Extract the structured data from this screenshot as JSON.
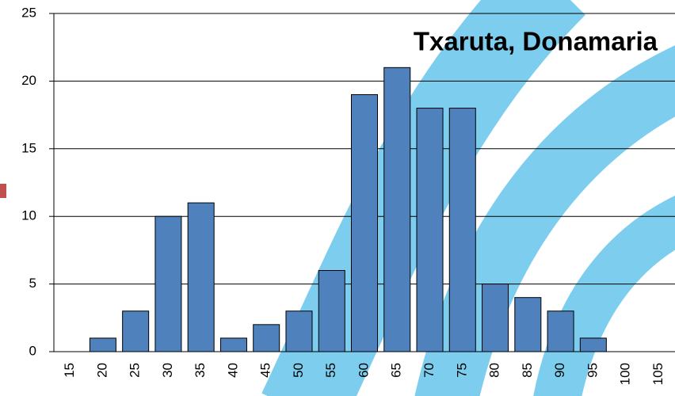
{
  "chart_data": {
    "type": "bar",
    "title": "Txaruta, Donamaria",
    "categories": [
      "15",
      "20",
      "25",
      "30",
      "35",
      "40",
      "45",
      "50",
      "55",
      "60",
      "65",
      "70",
      "75",
      "80",
      "85",
      "90",
      "95",
      "100",
      "105"
    ],
    "values": [
      0,
      1,
      3,
      10,
      11,
      1,
      2,
      3,
      6,
      19,
      21,
      18,
      18,
      5,
      4,
      3,
      1,
      0,
      0
    ],
    "color": "#4f81bd",
    "ylim": [
      0,
      25
    ],
    "yticks": [
      0,
      5,
      10,
      15,
      20,
      25
    ],
    "grid": true
  }
}
